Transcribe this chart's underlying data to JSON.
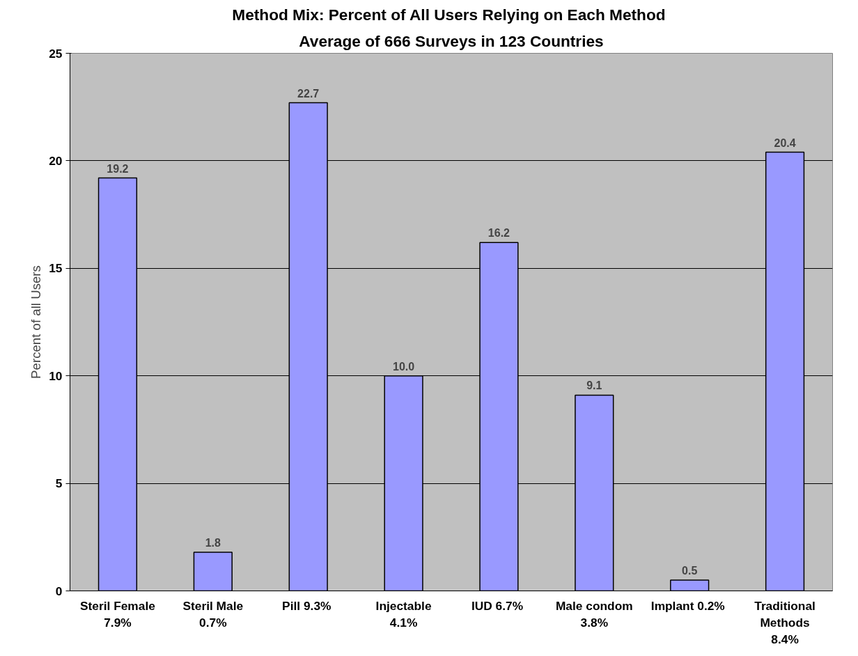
{
  "chart_data": {
    "type": "bar",
    "title": "Method Mix:  Percent of All Users Relying on Each Method",
    "subtitle": "Average of 666 Surveys in 123 Countries",
    "ylabel": "Percent of all Users",
    "categories": [
      "Steril Female\n7.9%",
      "Steril Male\n0.7%",
      "Pill  9.3%",
      "Injectable\n4.1%",
      "IUD  6.7%",
      "Male condom\n3.8%",
      "Implant  0.2%",
      "Traditional\nMethods\n8.4%"
    ],
    "values": [
      19.2,
      1.8,
      22.7,
      10.0,
      16.2,
      9.1,
      0.5,
      20.4
    ],
    "value_labels": [
      "19.2",
      "1.8",
      "22.7",
      "10.0",
      "16.2",
      "9.1",
      "0.5",
      "20.4"
    ],
    "color": "#9999ff",
    "ylim": [
      0,
      25
    ],
    "yticks": [
      0,
      5,
      10,
      15,
      20,
      25
    ],
    "grid": "y"
  }
}
